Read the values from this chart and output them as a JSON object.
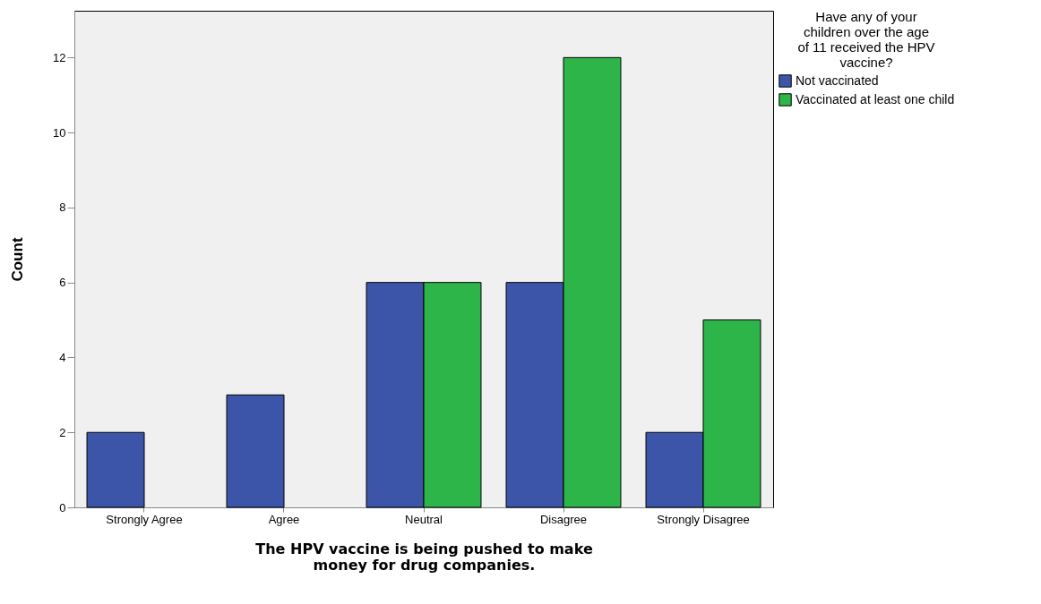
{
  "chart_data": {
    "type": "bar",
    "xlabel": "The HPV vaccine is being pushed to make money for drug companies.",
    "ylabel": "Count",
    "legend_title": "Have any of your children over the age of 11 received the HPV vaccine?",
    "categories": [
      "Strongly Agree",
      "Agree",
      "Neutral",
      "Disagree",
      "Strongly Disagree"
    ],
    "series": [
      {
        "name": "Not vaccinated",
        "color": "#3d55a8",
        "values": [
          2,
          3,
          6,
          6,
          2
        ]
      },
      {
        "name": "Vaccinated at least one child",
        "color": "#2db54a",
        "values": [
          null,
          null,
          6,
          12,
          5
        ]
      }
    ],
    "ylim": [
      0,
      13.25
    ],
    "yticks": [
      0,
      2,
      4,
      6,
      8,
      10,
      12
    ],
    "grid": false,
    "legend": "top right"
  }
}
